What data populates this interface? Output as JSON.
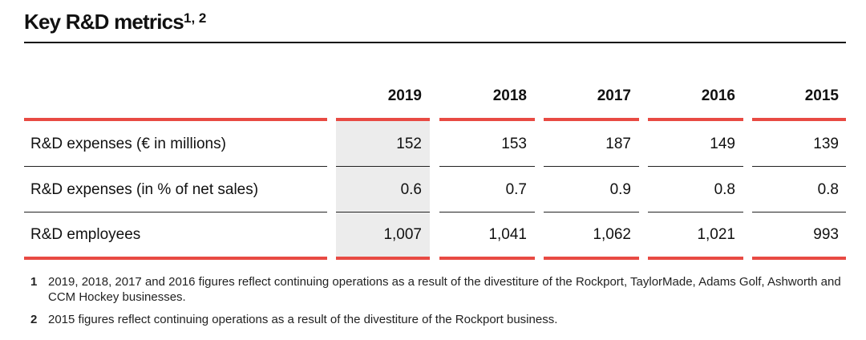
{
  "title": {
    "text": "Key R&D metrics",
    "superscript": "1, 2"
  },
  "table": {
    "years": [
      "2019",
      "2018",
      "2017",
      "2016",
      "2015"
    ],
    "rows": [
      {
        "label": "R&D expenses (€ in millions)",
        "values": [
          "152",
          "153",
          "187",
          "149",
          "139"
        ]
      },
      {
        "label": "R&D expenses (in % of net sales)",
        "values": [
          "0.6",
          "0.7",
          "0.9",
          "0.8",
          "0.8"
        ]
      },
      {
        "label": "R&D employees",
        "values": [
          "1,007",
          "1,041",
          "1,062",
          "1,021",
          "993"
        ]
      }
    ]
  },
  "footnotes": [
    {
      "num": "1",
      "text": "2019, 2018, 2017 and 2016 figures reflect continuing operations as a result of the divestiture of the Rockport, TaylorMade, Adams Golf, Ashworth and CCM Hockey businesses."
    },
    {
      "num": "2",
      "text": "2015 figures reflect continuing operations as a result of the divestiture of the Rockport business."
    }
  ],
  "colors": {
    "accent": "#e84a43",
    "highlight_column": "#ececec",
    "text": "#111111"
  }
}
